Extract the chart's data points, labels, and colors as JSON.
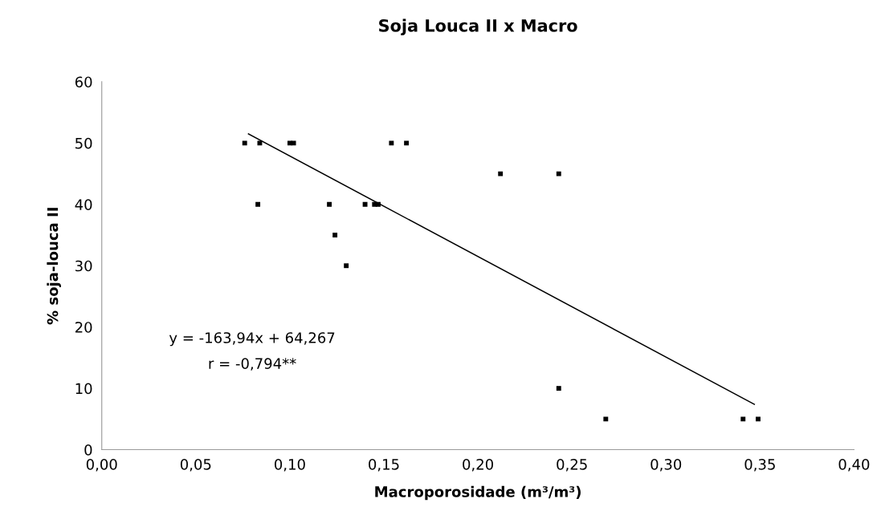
{
  "chart_data": {
    "type": "scatter",
    "title": "Soja Louca II x Macro",
    "xlabel": "Macroporosidade (m³/m³)",
    "ylabel": "% soja-louca II",
    "xlim": [
      0,
      0.4
    ],
    "xticks": [
      {
        "value": 0,
        "label": "0,00"
      },
      {
        "value": 0.05,
        "label": "0,05"
      },
      {
        "value": 0.1,
        "label": "0,10"
      },
      {
        "value": 0.15,
        "label": "0,15"
      },
      {
        "value": 0.2,
        "label": "0,20"
      },
      {
        "value": 0.25,
        "label": "0,25"
      },
      {
        "value": 0.3,
        "label": "0,30"
      },
      {
        "value": 0.35,
        "label": "0,35"
      },
      {
        "value": 0.4,
        "label": "0,40"
      }
    ],
    "ylim": [
      0,
      60
    ],
    "yticks": [
      0,
      10,
      20,
      30,
      40,
      50,
      60
    ],
    "grid": false,
    "series": [
      {
        "marker": "square",
        "color": "#000000",
        "x": [
          0.076,
          0.084,
          0.083,
          0.1,
          0.102,
          0.121,
          0.124,
          0.13,
          0.14,
          0.145,
          0.147,
          0.154,
          0.162,
          0.212,
          0.243,
          0.243,
          0.268,
          0.341,
          0.349
        ],
        "values": [
          50,
          50,
          40,
          50,
          50,
          40,
          35,
          30,
          40,
          40,
          40,
          50,
          50,
          45,
          45,
          10,
          5,
          5,
          5
        ]
      },
      {
        "type": "line",
        "marker": "none",
        "color": "#000000",
        "x": [
          0.078,
          0.347
        ],
        "values": [
          51.5,
          7.4
        ]
      }
    ],
    "annotations": [
      "y = -163,94x + 64,267",
      "r = -0,794**"
    ]
  }
}
